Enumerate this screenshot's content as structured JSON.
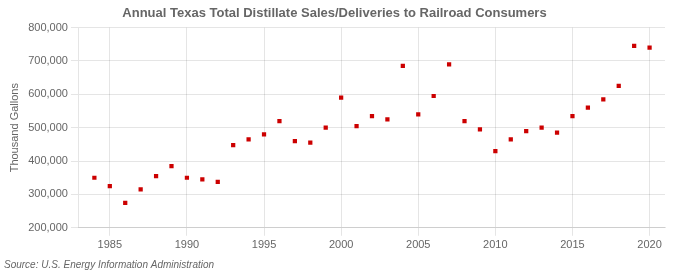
{
  "chart_data": {
    "type": "scatter",
    "title": "Annual Texas Total Distillate Sales/Deliveries to Railroad Consumers",
    "ylabel": "Thousand Gallons",
    "annotations": [
      "Source: U.S. Energy Information Administration"
    ],
    "x": [
      1984,
      1985,
      1986,
      1987,
      1988,
      1989,
      1990,
      1991,
      1992,
      1993,
      1994,
      1995,
      1996,
      1997,
      1998,
      1999,
      2000,
      2001,
      2002,
      2003,
      2004,
      2005,
      2006,
      2007,
      2008,
      2009,
      2010,
      2011,
      2012,
      2013,
      2014,
      2015,
      2016,
      2017,
      2018,
      2019,
      2020
    ],
    "values": [
      350000,
      325000,
      275000,
      315000,
      355000,
      385000,
      350000,
      345000,
      338000,
      448000,
      465000,
      480000,
      520000,
      460000,
      455000,
      500000,
      590000,
      505000,
      535000,
      525000,
      685000,
      540000,
      595000,
      690000,
      520000,
      495000,
      430000,
      465000,
      490000,
      500000,
      485000,
      535000,
      560000,
      585000,
      625000,
      745000,
      740000
    ],
    "color": "#cc0000",
    "marker": "square",
    "xlim": [
      1983,
      2021
    ],
    "ylim": [
      200000,
      800000
    ],
    "xticks": [
      1985,
      1990,
      1995,
      2000,
      2005,
      2010,
      2015,
      2020
    ],
    "yticks": [
      {
        "value": 200000,
        "label": "200,000"
      },
      {
        "value": 300000,
        "label": "300,000"
      },
      {
        "value": 400000,
        "label": "400,000"
      },
      {
        "value": 500000,
        "label": "500,000"
      },
      {
        "value": 600000,
        "label": "600,000"
      },
      {
        "value": 700000,
        "label": "700,000"
      },
      {
        "value": 800000,
        "label": "800,000"
      }
    ],
    "grid": true
  }
}
